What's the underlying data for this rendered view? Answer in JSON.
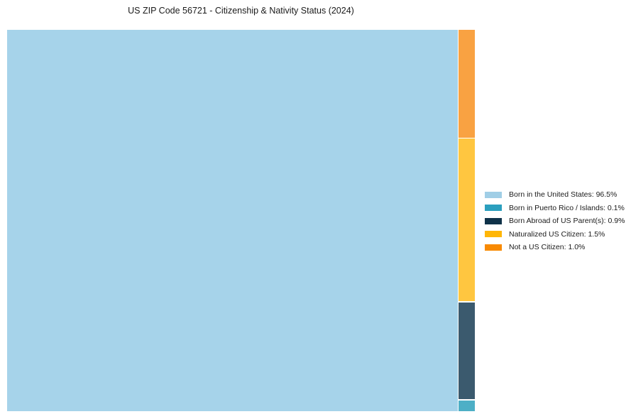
{
  "title": "US ZIP Code 56721 - Citizenship & Nativity Status (2024)",
  "chart_data": {
    "type": "pie",
    "subtype": "treemap",
    "title": "US ZIP Code 56721 - Citizenship & Nativity Status (2024)",
    "unit": "%",
    "series": [
      {
        "name": "Born in the United States",
        "value": 96.5,
        "label": "Born in the United States: 96.5%",
        "legend_color": "#A0CEE6",
        "tile_color": "#A6D3EA"
      },
      {
        "name": "Born in Puerto Rico / Islands",
        "value": 0.1,
        "label": "Born in Puerto Rico / Islands: 0.1%",
        "legend_color": "#2B9FBE",
        "tile_color": "#4DAFC6"
      },
      {
        "name": "Born Abroad of US Parent(s)",
        "value": 0.9,
        "label": "Born Abroad of US Parent(s): 0.9%",
        "legend_color": "#0F3249",
        "tile_color": "#3B5A6E"
      },
      {
        "name": "Naturalized US Citizen",
        "value": 1.5,
        "label": "Naturalized US Citizen: 1.5%",
        "legend_color": "#FFB607",
        "tile_color": "#FFC640"
      },
      {
        "name": "Not a US Citizen",
        "value": 1.0,
        "label": "Not a US Citizen: 1.0%",
        "legend_color": "#F88A02",
        "tile_color": "#F9A242"
      }
    ],
    "layout": {
      "main_index": 0,
      "column_order_top_to_bottom": [
        4,
        3,
        2,
        1
      ],
      "legend_position": "right-middle",
      "grid": false,
      "axes": false
    }
  }
}
